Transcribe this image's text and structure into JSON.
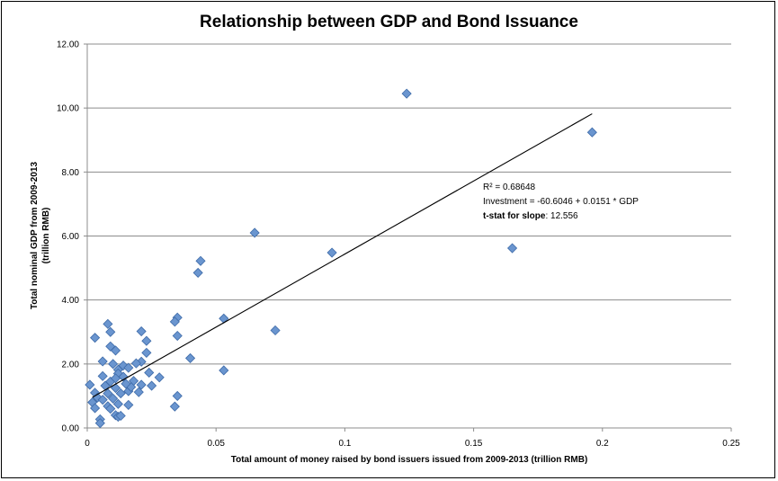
{
  "chart_data": {
    "type": "scatter",
    "title": "Relationship between GDP and Bond Issuance",
    "xlabel": "Total amount of money raised by bond issuers issued from 2009-2013 (trillion RMB)",
    "ylabel_line1": "Total nominal GDP from 2009-2013",
    "ylabel_line2": "(trillion RMB)",
    "xlim": [
      0,
      0.25
    ],
    "ylim": [
      0,
      12
    ],
    "x_ticks": [
      {
        "value": 0,
        "label": "0"
      },
      {
        "value": 0.05,
        "label": "0.05"
      },
      {
        "value": 0.1,
        "label": "0.1"
      },
      {
        "value": 0.15,
        "label": "0.15"
      },
      {
        "value": 0.2,
        "label": "0.2"
      },
      {
        "value": 0.25,
        "label": "0.25"
      }
    ],
    "y_ticks": [
      {
        "value": 0,
        "label": "0.00"
      },
      {
        "value": 2,
        "label": "2.00"
      },
      {
        "value": 4,
        "label": "4.00"
      },
      {
        "value": 6,
        "label": "6.00"
      },
      {
        "value": 8,
        "label": "8.00"
      },
      {
        "value": 10,
        "label": "10.00"
      },
      {
        "value": 12,
        "label": "12.00"
      }
    ],
    "grid": "horizontal",
    "marker_color": "#6a95cf",
    "marker_edge": "#3d6aa8",
    "trendline": {
      "x": [
        0.002,
        0.196
      ],
      "y": [
        0.96,
        9.82
      ]
    },
    "annotation": {
      "r2": "R² = 0.68648",
      "equation": "Investment = -60.6046 + 0.0151 * GDP",
      "tstat_label": "t-stat for slope",
      "tstat_value": ": 12.556"
    },
    "points": [
      [
        0.124,
        10.45
      ],
      [
        0.196,
        9.24
      ],
      [
        0.065,
        6.1
      ],
      [
        0.165,
        5.62
      ],
      [
        0.095,
        5.48
      ],
      [
        0.044,
        5.22
      ],
      [
        0.043,
        4.85
      ],
      [
        0.035,
        3.45
      ],
      [
        0.053,
        3.42
      ],
      [
        0.034,
        3.32
      ],
      [
        0.008,
        3.25
      ],
      [
        0.073,
        3.05
      ],
      [
        0.021,
        3.02
      ],
      [
        0.009,
        3.0
      ],
      [
        0.035,
        2.88
      ],
      [
        0.003,
        2.82
      ],
      [
        0.023,
        2.72
      ],
      [
        0.009,
        2.55
      ],
      [
        0.011,
        2.42
      ],
      [
        0.023,
        2.35
      ],
      [
        0.04,
        2.18
      ],
      [
        0.006,
        2.08
      ],
      [
        0.021,
        2.07
      ],
      [
        0.019,
        2.02
      ],
      [
        0.01,
        2.0
      ],
      [
        0.014,
        1.95
      ],
      [
        0.016,
        1.88
      ],
      [
        0.012,
        1.82
      ],
      [
        0.053,
        1.8
      ],
      [
        0.024,
        1.73
      ],
      [
        0.012,
        1.7
      ],
      [
        0.006,
        1.62
      ],
      [
        0.014,
        1.6
      ],
      [
        0.028,
        1.58
      ],
      [
        0.018,
        1.47
      ],
      [
        0.009,
        1.45
      ],
      [
        0.001,
        1.35
      ],
      [
        0.007,
        1.32
      ],
      [
        0.021,
        1.35
      ],
      [
        0.025,
        1.32
      ],
      [
        0.011,
        1.25
      ],
      [
        0.016,
        1.15
      ],
      [
        0.02,
        1.12
      ],
      [
        0.003,
        1.1
      ],
      [
        0.008,
        1.08
      ],
      [
        0.013,
        1.08
      ],
      [
        0.035,
        1.0
      ],
      [
        0.004,
        0.95
      ],
      [
        0.01,
        0.92
      ],
      [
        0.006,
        0.88
      ],
      [
        0.002,
        0.8
      ],
      [
        0.012,
        0.75
      ],
      [
        0.016,
        0.72
      ],
      [
        0.008,
        0.68
      ],
      [
        0.034,
        0.67
      ],
      [
        0.003,
        0.62
      ],
      [
        0.009,
        0.6
      ],
      [
        0.011,
        0.4
      ],
      [
        0.012,
        0.35
      ],
      [
        0.005,
        0.27
      ],
      [
        0.005,
        0.15
      ],
      [
        0.013,
        0.38
      ],
      [
        0.017,
        1.28
      ],
      [
        0.011,
        1.55
      ],
      [
        0.015,
        1.38
      ]
    ]
  }
}
